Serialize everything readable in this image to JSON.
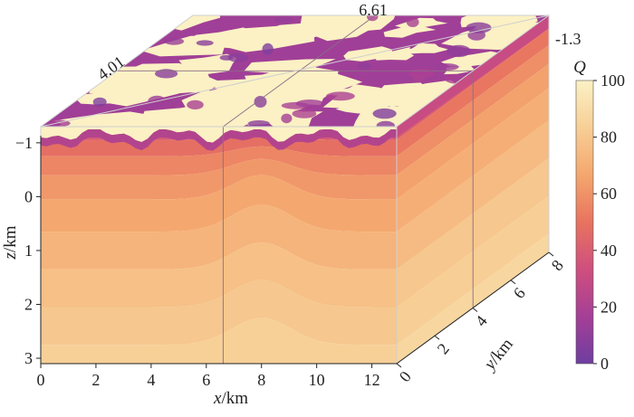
{
  "chart_data": {
    "type": "heatmap",
    "title": "",
    "xlabel": {
      "var": "x",
      "unit": "/km"
    },
    "ylabel": {
      "var": "y",
      "unit": "/km"
    },
    "zlabel": {
      "var": "z",
      "unit": "/km"
    },
    "x_ticks": [
      "0",
      "2",
      "4",
      "6",
      "8",
      "10",
      "12"
    ],
    "y_ticks": [
      "0",
      "2",
      "4",
      "6",
      "8"
    ],
    "z_ticks": [
      "−1",
      "0",
      "1",
      "2",
      "3"
    ],
    "xlim": [
      0,
      12.9
    ],
    "ylim": [
      0,
      8
    ],
    "zlim": [
      -1.3,
      3.1
    ],
    "slice_annotations": {
      "x_slice": "4.01",
      "y_slice": "6.61",
      "z_slice": "-1.3"
    },
    "slice_positions": {
      "x": 6.61,
      "y": 4.01,
      "z": -1.3
    },
    "colorbar": {
      "label": "Q",
      "min": 0,
      "max": 100,
      "ticks": [
        "0",
        "20",
        "40",
        "60",
        "80",
        "100"
      ],
      "colors": [
        "#6e3ea0",
        "#a53f96",
        "#cf4f7e",
        "#e8735f",
        "#f4a76e",
        "#f7cf96",
        "#fbf1c4"
      ]
    },
    "layers": [
      {
        "z_top": -1.3,
        "z_bottom": -1.05,
        "q": 38
      },
      {
        "z_top": -1.05,
        "z_bottom": -0.75,
        "q": 48
      },
      {
        "z_top": -0.75,
        "z_bottom": -0.4,
        "q": 56
      },
      {
        "z_top": -0.4,
        "z_bottom": 0.05,
        "q": 62
      },
      {
        "z_top": 0.05,
        "z_bottom": 0.65,
        "q": 67
      },
      {
        "z_top": 0.65,
        "z_bottom": 1.35,
        "q": 72
      },
      {
        "z_top": 1.35,
        "z_bottom": 2.05,
        "q": 77
      },
      {
        "z_top": 2.05,
        "z_bottom": 2.75,
        "q": 80
      },
      {
        "z_top": 2.75,
        "z_bottom": 3.1,
        "q": 84
      }
    ],
    "anticline": {
      "x_center": 8,
      "width": 1.5,
      "uplift": 0.5
    },
    "top_surface": {
      "low_q": 15,
      "high_q": 100
    }
  }
}
